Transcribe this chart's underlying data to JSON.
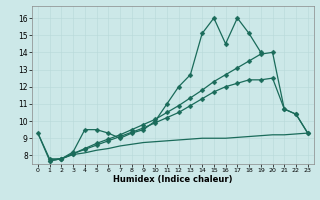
{
  "xlabel": "Humidex (Indice chaleur)",
  "bg_color": "#cce8e8",
  "grid_color": "#b8d8d8",
  "line_color": "#1a6b5a",
  "xlim": [
    -0.5,
    23.5
  ],
  "ylim": [
    7.5,
    16.7
  ],
  "xticks": [
    0,
    1,
    2,
    3,
    4,
    5,
    6,
    7,
    8,
    9,
    10,
    11,
    12,
    13,
    14,
    15,
    16,
    17,
    18,
    19,
    20,
    21,
    22,
    23
  ],
  "yticks": [
    8,
    9,
    10,
    11,
    12,
    13,
    14,
    15,
    16
  ],
  "series": [
    {
      "x": [
        0,
        1,
        2,
        3,
        4,
        5,
        6,
        7,
        8,
        9,
        10,
        11,
        12,
        13,
        14,
        15,
        16,
        17,
        18,
        19
      ],
      "y": [
        9.3,
        7.8,
        7.8,
        8.2,
        9.5,
        9.5,
        9.3,
        9.0,
        9.3,
        9.5,
        10.0,
        11.0,
        12.0,
        12.7,
        15.1,
        16.0,
        14.5,
        16.0,
        15.1,
        14.0
      ],
      "marker": "D",
      "markersize": 2.5,
      "linewidth": 0.9
    },
    {
      "x": [
        1,
        2,
        3,
        4,
        5,
        6,
        7,
        8,
        9,
        10,
        11,
        12,
        13,
        14,
        15,
        16,
        17,
        18,
        19,
        20,
        21,
        22,
        23
      ],
      "y": [
        7.7,
        7.8,
        8.1,
        8.4,
        8.7,
        8.95,
        9.2,
        9.5,
        9.8,
        10.1,
        10.5,
        10.9,
        11.35,
        11.8,
        12.3,
        12.7,
        13.1,
        13.5,
        13.9,
        14.0,
        10.7,
        10.4,
        9.3
      ],
      "marker": "D",
      "markersize": 2.5,
      "linewidth": 0.9
    },
    {
      "x": [
        1,
        2,
        3,
        4,
        5,
        6,
        7,
        8,
        9,
        10,
        11,
        12,
        13,
        14,
        15,
        16,
        17,
        18,
        19,
        20,
        21,
        22,
        23
      ],
      "y": [
        7.7,
        7.8,
        8.1,
        8.35,
        8.6,
        8.85,
        9.1,
        9.35,
        9.6,
        9.9,
        10.2,
        10.5,
        10.9,
        11.3,
        11.7,
        12.0,
        12.2,
        12.4,
        12.4,
        12.5,
        10.7,
        10.4,
        9.3
      ],
      "marker": "D",
      "markersize": 2.5,
      "linewidth": 0.9
    },
    {
      "x": [
        0,
        1,
        2,
        3,
        4,
        5,
        6,
        7,
        8,
        9,
        10,
        11,
        12,
        13,
        14,
        15,
        16,
        17,
        18,
        19,
        20,
        21,
        22,
        23
      ],
      "y": [
        9.3,
        7.7,
        7.8,
        8.05,
        8.15,
        8.3,
        8.4,
        8.55,
        8.65,
        8.75,
        8.8,
        8.85,
        8.9,
        8.95,
        9.0,
        9.0,
        9.0,
        9.05,
        9.1,
        9.15,
        9.2,
        9.2,
        9.25,
        9.3
      ],
      "marker": null,
      "markersize": 0,
      "linewidth": 0.9
    }
  ]
}
